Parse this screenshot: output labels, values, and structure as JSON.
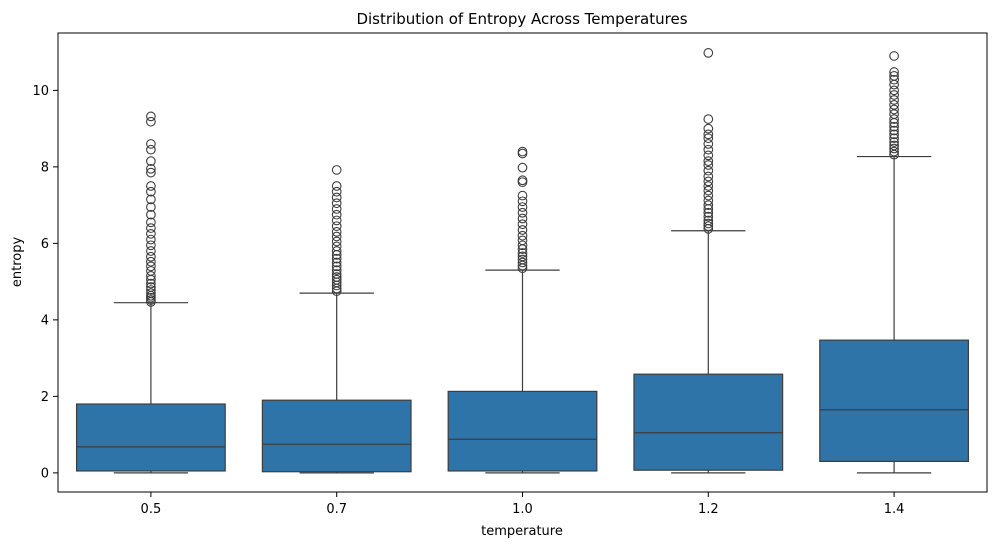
{
  "chart_data": {
    "type": "box",
    "title": "Distribution of Entropy Across Temperatures",
    "xlabel": "temperature",
    "ylabel": "entropy",
    "categories": [
      "0.5",
      "0.7",
      "1.0",
      "1.2",
      "1.4"
    ],
    "ylim": [
      -0.5,
      11.5
    ],
    "yticks": [
      0,
      2,
      4,
      6,
      8,
      10
    ],
    "grid": false,
    "box_color": "#2e74a8",
    "line_color": "#3d3d3d",
    "boxes": [
      {
        "category": "0.5",
        "whisker_low": 0.0,
        "q1": 0.05,
        "median": 0.68,
        "q3": 1.8,
        "whisker_high": 4.45,
        "outliers": [
          4.47,
          4.52,
          4.58,
          4.63,
          4.7,
          4.78,
          4.86,
          4.95,
          5.05,
          5.15,
          5.28,
          5.4,
          5.52,
          5.65,
          5.8,
          5.95,
          6.1,
          6.25,
          6.4,
          6.55,
          6.75,
          6.95,
          7.15,
          7.35,
          7.5,
          7.85,
          7.95,
          8.15,
          8.45,
          8.6,
          9.18,
          9.32
        ]
      },
      {
        "category": "0.7",
        "whisker_low": 0.0,
        "q1": 0.03,
        "median": 0.75,
        "q3": 1.9,
        "whisker_high": 4.7,
        "outliers": [
          4.75,
          4.82,
          4.9,
          4.98,
          5.05,
          5.12,
          5.2,
          5.3,
          5.4,
          5.5,
          5.6,
          5.7,
          5.8,
          5.92,
          6.05,
          6.18,
          6.3,
          6.45,
          6.6,
          6.75,
          6.9,
          7.05,
          7.2,
          7.35,
          7.5,
          7.92
        ]
      },
      {
        "category": "1.0",
        "whisker_low": 0.0,
        "q1": 0.05,
        "median": 0.88,
        "q3": 2.13,
        "whisker_high": 5.3,
        "outliers": [
          5.35,
          5.42,
          5.5,
          5.58,
          5.66,
          5.75,
          5.85,
          5.95,
          6.08,
          6.2,
          6.35,
          6.5,
          6.65,
          6.8,
          6.95,
          7.1,
          7.25,
          7.6,
          7.65,
          7.98,
          8.35,
          8.4
        ]
      },
      {
        "category": "1.2",
        "whisker_low": 0.0,
        "q1": 0.07,
        "median": 1.05,
        "q3": 2.58,
        "whisker_high": 6.33,
        "outliers": [
          6.38,
          6.45,
          6.52,
          6.6,
          6.7,
          6.8,
          6.9,
          7.0,
          7.12,
          7.25,
          7.38,
          7.5,
          7.62,
          7.75,
          7.9,
          8.05,
          8.15,
          8.3,
          8.45,
          8.6,
          8.75,
          8.85,
          9.0,
          9.25,
          10.98
        ]
      },
      {
        "category": "1.4",
        "whisker_low": 0.0,
        "q1": 0.3,
        "median": 1.65,
        "q3": 3.47,
        "whisker_high": 8.27,
        "outliers": [
          8.32,
          8.4,
          8.48,
          8.56,
          8.65,
          8.75,
          8.85,
          8.95,
          9.05,
          9.15,
          9.25,
          9.38,
          9.5,
          9.62,
          9.75,
          9.88,
          10.0,
          10.15,
          10.28,
          10.38,
          10.48,
          10.9
        ]
      }
    ]
  }
}
